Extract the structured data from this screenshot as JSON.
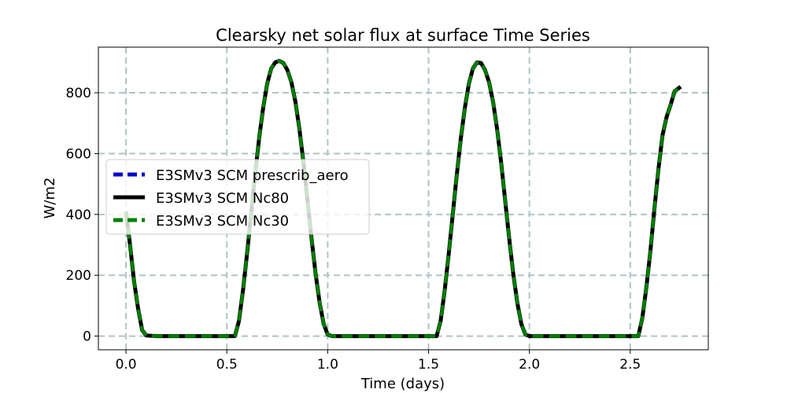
{
  "chart_data": {
    "type": "line",
    "title": "Clearsky net solar flux at surface Time Series",
    "xlabel": "Time (days)",
    "ylabel": "W/m2",
    "xlim": [
      -0.137,
      2.887
    ],
    "ylim": [
      -45,
      950
    ],
    "xticks": [
      0.0,
      0.5,
      1.0,
      1.5,
      2.0,
      2.5
    ],
    "xtick_labels": [
      "0.0",
      "0.5",
      "1.0",
      "1.5",
      "2.0",
      "2.5"
    ],
    "yticks": [
      0,
      200,
      400,
      600,
      800
    ],
    "ytick_labels": [
      "0",
      "200",
      "400",
      "600",
      "800"
    ],
    "grid": true,
    "legend_position": "center-left",
    "x": [
      0.0,
      0.02,
      0.04,
      0.06,
      0.08,
      0.1,
      0.15,
      0.2,
      0.3,
      0.4,
      0.5,
      0.54,
      0.56,
      0.58,
      0.6,
      0.62,
      0.64,
      0.66,
      0.68,
      0.7,
      0.72,
      0.74,
      0.76,
      0.78,
      0.8,
      0.82,
      0.84,
      0.86,
      0.88,
      0.9,
      0.92,
      0.94,
      0.96,
      0.98,
      1.0,
      1.02,
      1.04,
      1.06,
      1.08,
      1.1,
      1.15,
      1.2,
      1.3,
      1.4,
      1.5,
      1.54,
      1.56,
      1.58,
      1.6,
      1.62,
      1.64,
      1.66,
      1.68,
      1.7,
      1.72,
      1.74,
      1.76,
      1.78,
      1.8,
      1.82,
      1.84,
      1.86,
      1.88,
      1.9,
      1.92,
      1.94,
      1.96,
      1.98,
      2.0,
      2.02,
      2.04,
      2.06,
      2.08,
      2.1,
      2.15,
      2.2,
      2.3,
      2.4,
      2.5,
      2.54,
      2.56,
      2.58,
      2.6,
      2.62,
      2.64,
      2.66,
      2.68,
      2.7,
      2.72,
      2.75
    ],
    "series": [
      {
        "name": "E3SMv3 SCM prescrib_aero",
        "color": "#0000cc",
        "style": "dashed",
        "values": [
          410,
          300,
          180,
          90,
          20,
          2,
          0,
          0,
          0,
          0,
          0,
          0,
          50,
          150,
          270,
          400,
          530,
          650,
          750,
          830,
          880,
          900,
          905,
          898,
          875,
          835,
          770,
          680,
          570,
          445,
          320,
          205,
          110,
          40,
          5,
          0,
          0,
          0,
          0,
          0,
          0,
          0,
          0,
          0,
          0,
          0,
          50,
          150,
          270,
          400,
          530,
          650,
          750,
          830,
          880,
          900,
          898,
          875,
          835,
          770,
          680,
          570,
          445,
          320,
          205,
          110,
          40,
          5,
          0,
          0,
          0,
          0,
          0,
          0,
          0,
          0,
          0,
          0,
          0,
          0,
          60,
          160,
          280,
          420,
          550,
          660,
          720,
          760,
          805,
          820
        ]
      },
      {
        "name": "E3SMv3 SCM Nc80",
        "color": "#000000",
        "style": "solid",
        "values": [
          410,
          300,
          180,
          90,
          20,
          2,
          0,
          0,
          0,
          0,
          0,
          0,
          50,
          150,
          270,
          400,
          530,
          650,
          750,
          830,
          880,
          900,
          905,
          898,
          875,
          835,
          770,
          680,
          570,
          445,
          320,
          205,
          110,
          40,
          5,
          0,
          0,
          0,
          0,
          0,
          0,
          0,
          0,
          0,
          0,
          0,
          50,
          150,
          270,
          400,
          530,
          650,
          750,
          830,
          880,
          900,
          898,
          875,
          835,
          770,
          680,
          570,
          445,
          320,
          205,
          110,
          40,
          5,
          0,
          0,
          0,
          0,
          0,
          0,
          0,
          0,
          0,
          0,
          0,
          0,
          60,
          160,
          280,
          420,
          550,
          660,
          720,
          760,
          805,
          820
        ]
      },
      {
        "name": "E3SMv3 SCM Nc30",
        "color": "#008000",
        "style": "dashed",
        "values": [
          410,
          300,
          180,
          90,
          20,
          2,
          0,
          0,
          0,
          0,
          0,
          0,
          50,
          150,
          270,
          400,
          530,
          650,
          750,
          830,
          880,
          900,
          905,
          898,
          875,
          835,
          770,
          680,
          570,
          445,
          320,
          205,
          110,
          40,
          5,
          0,
          0,
          0,
          0,
          0,
          0,
          0,
          0,
          0,
          0,
          0,
          50,
          150,
          270,
          400,
          530,
          650,
          750,
          830,
          880,
          900,
          898,
          875,
          835,
          770,
          680,
          570,
          445,
          320,
          205,
          110,
          40,
          5,
          0,
          0,
          0,
          0,
          0,
          0,
          0,
          0,
          0,
          0,
          0,
          0,
          60,
          160,
          280,
          420,
          550,
          660,
          720,
          760,
          805,
          820
        ]
      }
    ]
  }
}
